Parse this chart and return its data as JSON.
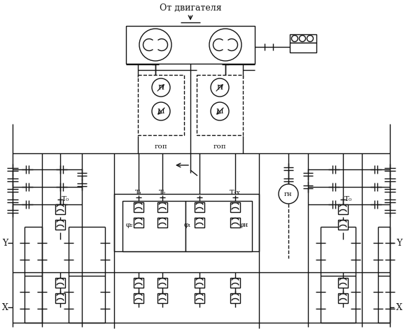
{
  "bg": "#ffffff",
  "fg": "#111111",
  "title": "От двигателя",
  "gop": "гоп",
  "gn_label": "гн",
  "T0": "T₀",
  "T1": "T₁",
  "T2": "T₂",
  "T3x": "T₃х",
  "phi2": "φ₂",
  "phi1": "φ₁",
  "phin": "φн",
  "H": "Н",
  "M": "М",
  "Y": "Y"
}
